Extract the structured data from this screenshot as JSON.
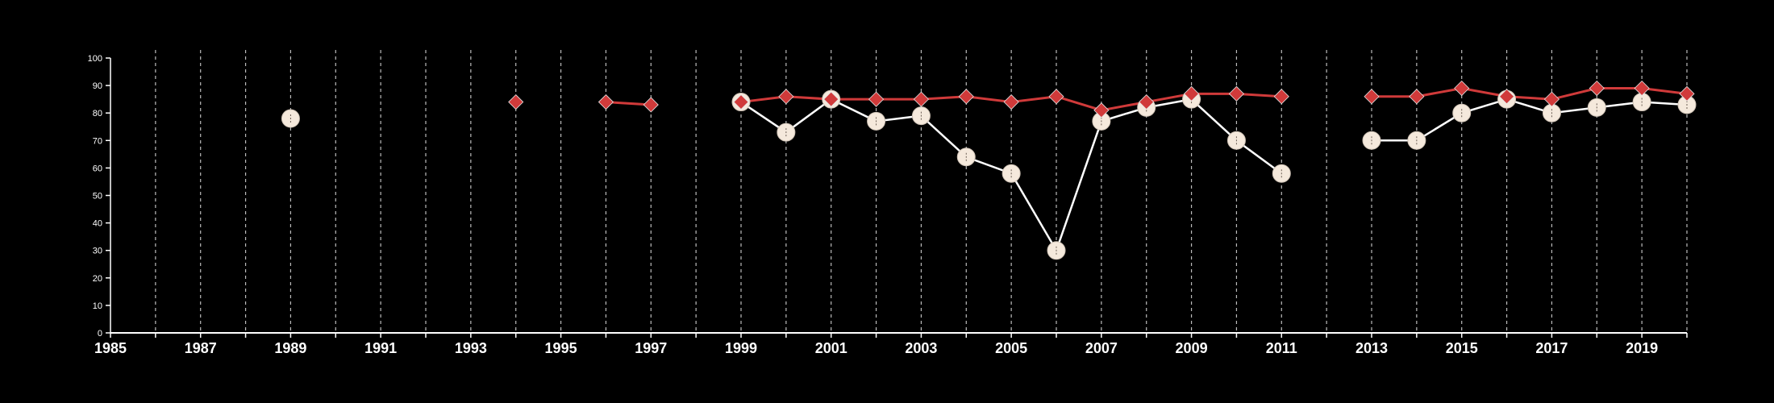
{
  "chart_data": {
    "type": "line",
    "title": "",
    "xlabel": "",
    "ylabel": "",
    "xlim": [
      1985,
      2020
    ],
    "ylim": [
      0,
      100
    ],
    "x_ticks": [
      1985,
      1987,
      1989,
      1991,
      1993,
      1995,
      1997,
      1999,
      2001,
      2003,
      2005,
      2007,
      2009,
      2011,
      2013,
      2015,
      2017,
      2019
    ],
    "y_ticks": [
      0,
      10,
      20,
      30,
      40,
      50,
      60,
      70,
      80,
      90,
      100
    ],
    "grid": "vertical dashed at every year",
    "legend": "none",
    "series": [
      {
        "marker": "diamond",
        "color": "#d03a3a",
        "points": [
          {
            "x": 1994,
            "y": 84
          },
          {
            "x": 1996,
            "y": 84
          },
          {
            "x": 1997,
            "y": 83
          },
          {
            "x": 1999,
            "y": 84
          },
          {
            "x": 2000,
            "y": 86
          },
          {
            "x": 2001,
            "y": 85
          },
          {
            "x": 2002,
            "y": 85
          },
          {
            "x": 2003,
            "y": 85
          },
          {
            "x": 2004,
            "y": 86
          },
          {
            "x": 2005,
            "y": 84
          },
          {
            "x": 2006,
            "y": 86
          },
          {
            "x": 2007,
            "y": 81
          },
          {
            "x": 2008,
            "y": 84
          },
          {
            "x": 2009,
            "y": 87
          },
          {
            "x": 2010,
            "y": 87
          },
          {
            "x": 2011,
            "y": 86
          },
          {
            "x": 2013,
            "y": 86
          },
          {
            "x": 2014,
            "y": 86
          },
          {
            "x": 2015,
            "y": 89
          },
          {
            "x": 2016,
            "y": 86
          },
          {
            "x": 2017,
            "y": 85
          },
          {
            "x": 2018,
            "y": 89
          },
          {
            "x": 2019,
            "y": 89
          },
          {
            "x": 2020,
            "y": 87
          }
        ]
      },
      {
        "marker": "circle",
        "color": "#f5e9dc",
        "points": [
          {
            "x": 1989,
            "y": 78
          },
          {
            "x": 1999,
            "y": 84
          },
          {
            "x": 2000,
            "y": 73
          },
          {
            "x": 2001,
            "y": 85
          },
          {
            "x": 2002,
            "y": 77
          },
          {
            "x": 2003,
            "y": 79
          },
          {
            "x": 2004,
            "y": 64
          },
          {
            "x": 2005,
            "y": 58
          },
          {
            "x": 2006,
            "y": 30
          },
          {
            "x": 2007,
            "y": 77
          },
          {
            "x": 2008,
            "y": 82
          },
          {
            "x": 2009,
            "y": 85
          },
          {
            "x": 2010,
            "y": 70
          },
          {
            "x": 2011,
            "y": 58
          },
          {
            "x": 2013,
            "y": 70
          },
          {
            "x": 2014,
            "y": 70
          },
          {
            "x": 2015,
            "y": 80
          },
          {
            "x": 2016,
            "y": 85
          },
          {
            "x": 2017,
            "y": 80
          },
          {
            "x": 2018,
            "y": 82
          },
          {
            "x": 2019,
            "y": 84
          },
          {
            "x": 2020,
            "y": 83
          }
        ]
      }
    ],
    "colors": {
      "background": "#000000",
      "axis": "#ffffff",
      "grid": "#bbbbbb",
      "circle_line": "#ffffff"
    }
  }
}
